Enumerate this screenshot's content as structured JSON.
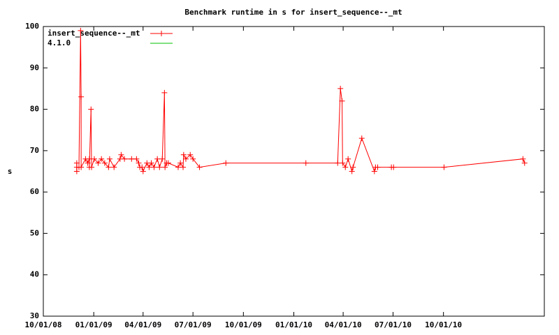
{
  "chart_data": {
    "type": "line",
    "title": "Benchmark runtime in s for insert_sequence--_mt",
    "ylabel": "s",
    "ylim": [
      30,
      100
    ],
    "yticks": [
      30,
      40,
      50,
      60,
      70,
      80,
      90,
      100
    ],
    "xlim": [
      "2008-10-01",
      "2011-04-03"
    ],
    "xticks": [
      {
        "value": "2008-10-01",
        "label": "10/01/08"
      },
      {
        "value": "2009-01-01",
        "label": "01/01/09"
      },
      {
        "value": "2009-04-01",
        "label": "04/01/09"
      },
      {
        "value": "2009-07-01",
        "label": "07/01/09"
      },
      {
        "value": "2009-10-01",
        "label": "10/01/09"
      },
      {
        "value": "2010-01-01",
        "label": "01/01/10"
      },
      {
        "value": "2010-04-01",
        "label": "04/01/10"
      },
      {
        "value": "2010-07-01",
        "label": "07/01/10"
      },
      {
        "value": "2010-10-01",
        "label": "10/01/10"
      }
    ],
    "legend": "top-left",
    "series": [
      {
        "name": "insert_sequence--_mt",
        "color": "#ff0000",
        "x": [
          "2008-12-01",
          "2008-12-01",
          "2008-12-01",
          "2008-12-05",
          "2008-12-08",
          "2008-12-09",
          "2008-12-09",
          "2008-12-17",
          "2008-12-21",
          "2008-12-24",
          "2008-12-24",
          "2008-12-27",
          "2008-12-28",
          "2009-01-02",
          "2009-01-09",
          "2009-01-15",
          "2009-01-21",
          "2009-01-28",
          "2009-01-30",
          "2009-02-07",
          "2009-02-18",
          "2009-02-20",
          "2009-02-26",
          "2009-03-11",
          "2009-03-20",
          "2009-03-24",
          "2009-03-26",
          "2009-03-30",
          "2009-04-01",
          "2009-04-08",
          "2009-04-12",
          "2009-04-16",
          "2009-04-21",
          "2009-04-27",
          "2009-05-01",
          "2009-05-06",
          "2009-05-10",
          "2009-05-11",
          "2009-05-14",
          "2009-05-17",
          "2009-06-04",
          "2009-06-08",
          "2009-06-13",
          "2009-06-14",
          "2009-06-18",
          "2009-06-26",
          "2009-07-01",
          "2009-07-13",
          "2009-08-30",
          "2010-01-23",
          "2010-03-22",
          "2010-03-27",
          "2010-03-30",
          "2010-03-31",
          "2010-04-05",
          "2010-04-10",
          "2010-04-17",
          "2010-04-19",
          "2010-05-05",
          "2010-05-28",
          "2010-05-30",
          "2010-06-03",
          "2010-06-28",
          "2010-07-02",
          "2010-10-02",
          "2011-02-23",
          "2011-02-26"
        ],
        "values": [
          65,
          67,
          66,
          66,
          99,
          83,
          66,
          68,
          67,
          68,
          66,
          80,
          66,
          68,
          67,
          68,
          67,
          66,
          68,
          66,
          68,
          69,
          68,
          68,
          68,
          67,
          66,
          66,
          65,
          67,
          66,
          67,
          66,
          68,
          66,
          68,
          84,
          66,
          67,
          67,
          66,
          67,
          66,
          69,
          68,
          69,
          68,
          66,
          67,
          67,
          67,
          85,
          82,
          67,
          66,
          68,
          65,
          66,
          73,
          65,
          66,
          66,
          66,
          66,
          66,
          68,
          67
        ]
      },
      {
        "name": "4.1.0",
        "color": "#00c000",
        "x": [],
        "values": []
      }
    ]
  }
}
